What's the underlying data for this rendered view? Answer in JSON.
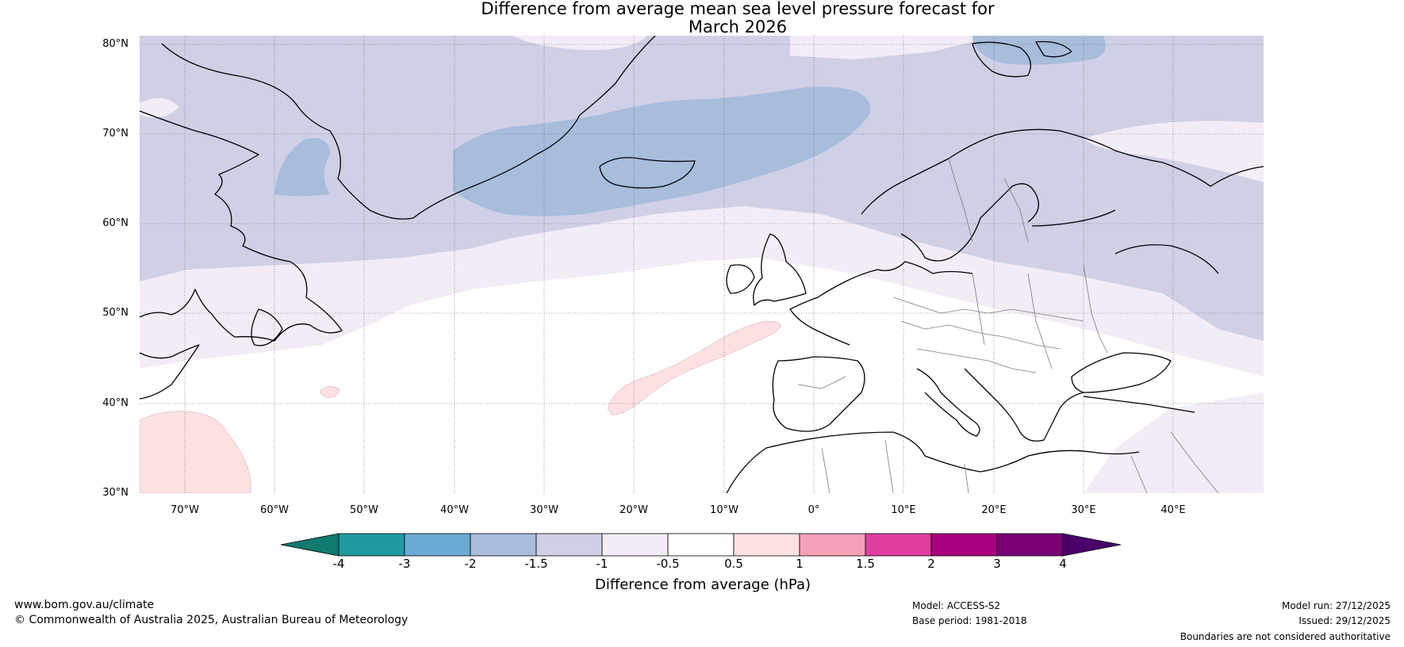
{
  "title": {
    "line1": "Difference from average mean sea level pressure forecast for",
    "line2": "March 2026"
  },
  "map": {
    "latitude_labels": [
      "80°N",
      "70°N",
      "60°N",
      "50°N",
      "40°N",
      "30°N"
    ],
    "longitude_labels": [
      "70°W",
      "60°W",
      "50°W",
      "40°W",
      "30°W",
      "20°W",
      "10°W",
      "0°",
      "10°E",
      "20°E",
      "30°E",
      "40°E"
    ],
    "extent": {
      "lon_min": -75,
      "lon_max": 50,
      "lat_min": 30,
      "lat_max": 81
    }
  },
  "colorbar": {
    "ticks": [
      "-4",
      "-3",
      "-2",
      "-1.5",
      "-1",
      "-0.5",
      "0.5",
      "1",
      "1.5",
      "2",
      "3",
      "4"
    ],
    "colors": [
      "#0f7a6d",
      "#1f9aa0",
      "#6aaad4",
      "#a8bcdc",
      "#cfd0e5",
      "#f3ecf6",
      "#ffffff",
      "#fde0e2",
      "#f7a1b8",
      "#df3da0",
      "#a8007e",
      "#7a0078",
      "#4a006b"
    ],
    "label": "Difference from average (hPa)"
  },
  "footer": {
    "website": "www.bom.gov.au/climate",
    "copyright": "© Commonwealth of Australia 2025, Australian Bureau of Meteorology",
    "model": "Model: ACCESS-S2",
    "base_period": "Base period: 1981-2018",
    "model_run": "Model run: 27/12/2025",
    "issued": "Issued: 29/12/2025",
    "disclaimer": "Boundaries are not considered authoritative"
  },
  "colors": {
    "coast": "#000000",
    "border": "#7a7a7a",
    "grid": "#555555"
  }
}
